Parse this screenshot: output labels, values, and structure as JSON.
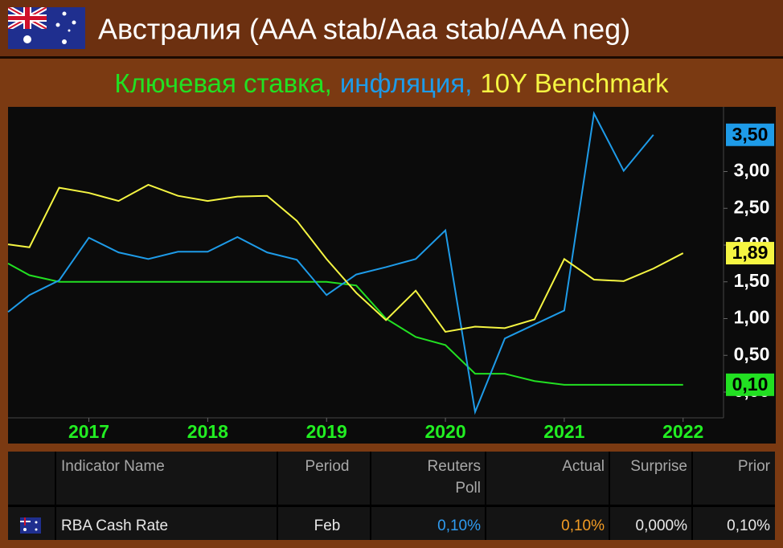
{
  "chart_data": {
    "type": "line",
    "title": "Австралия (AAA stab/Aaa stab/AAA neg)",
    "x": [
      2016.32,
      2016.5,
      2016.75,
      2017,
      2017.25,
      2017.5,
      2017.75,
      2018,
      2018.25,
      2018.5,
      2018.75,
      2019,
      2019.25,
      2019.5,
      2019.75,
      2020,
      2020.25,
      2020.5,
      2020.75,
      2021,
      2021.25,
      2021.5,
      2021.75,
      2022
    ],
    "xlim": [
      2016.32,
      2022.34
    ],
    "xticks": [
      2017,
      2018,
      2019,
      2020,
      2021,
      2022
    ],
    "ylim": [
      -0.35,
      3.88
    ],
    "yticks": [
      {
        "value": 0,
        "label": "0,00"
      },
      {
        "value": 0.5,
        "label": "0,50"
      },
      {
        "value": 1,
        "label": "1,00"
      },
      {
        "value": 1.5,
        "label": "1,50"
      },
      {
        "value": 2,
        "label": "2,00"
      },
      {
        "value": 2.5,
        "label": "2,50"
      },
      {
        "value": 3,
        "label": "3,00"
      }
    ],
    "grid": false,
    "series": [
      {
        "name": "Ключевая ставка,",
        "color": "#22e022",
        "values": [
          1.75,
          1.59,
          1.5,
          1.5,
          1.5,
          1.5,
          1.5,
          1.5,
          1.5,
          1.5,
          1.5,
          1.5,
          1.45,
          1.0,
          0.75,
          0.64,
          0.25,
          0.25,
          0.15,
          0.1,
          0.1,
          0.1,
          0.1,
          0.1
        ],
        "value_labels": [
          null,
          null,
          null,
          null,
          null,
          null,
          null,
          null,
          null,
          null,
          null,
          null,
          null,
          null,
          null,
          null,
          null,
          null,
          null,
          null,
          null,
          null,
          null,
          "0,10"
        ]
      },
      {
        "name": "инфляция,",
        "color": "#1e9be8",
        "values": [
          1.09,
          1.32,
          1.52,
          2.1,
          1.9,
          1.81,
          1.91,
          1.91,
          2.11,
          1.9,
          1.8,
          1.32,
          1.6,
          1.7,
          1.81,
          2.2,
          -0.27,
          0.73,
          0.92,
          1.11,
          3.79,
          3.01,
          3.5,
          null
        ],
        "value_labels": [
          null,
          null,
          null,
          null,
          null,
          null,
          null,
          null,
          null,
          null,
          null,
          null,
          null,
          null,
          null,
          null,
          null,
          null,
          null,
          null,
          null,
          null,
          "3,50",
          null
        ]
      },
      {
        "name": "10Y Benchmark",
        "color": "#f5f542",
        "values": [
          2.01,
          1.97,
          2.78,
          2.71,
          2.6,
          2.82,
          2.67,
          2.6,
          2.66,
          2.67,
          2.33,
          1.81,
          1.35,
          0.98,
          1.38,
          0.82,
          0.89,
          0.87,
          0.99,
          1.81,
          1.53,
          1.51,
          1.68,
          1.89
        ],
        "value_labels": [
          null,
          null,
          null,
          null,
          null,
          null,
          null,
          null,
          null,
          null,
          null,
          null,
          null,
          null,
          null,
          null,
          null,
          null,
          null,
          null,
          null,
          null,
          null,
          "1,89"
        ]
      }
    ]
  },
  "table": {
    "header": [
      "Indicator Name",
      "Period",
      "Reuters\nPoll",
      "Actual",
      "Surprise",
      "Prior"
    ],
    "rows": [
      [
        "RBA Cash Rate",
        "Feb",
        "0,10%",
        "0,10%",
        "0,000%",
        "0,10%"
      ]
    ]
  }
}
